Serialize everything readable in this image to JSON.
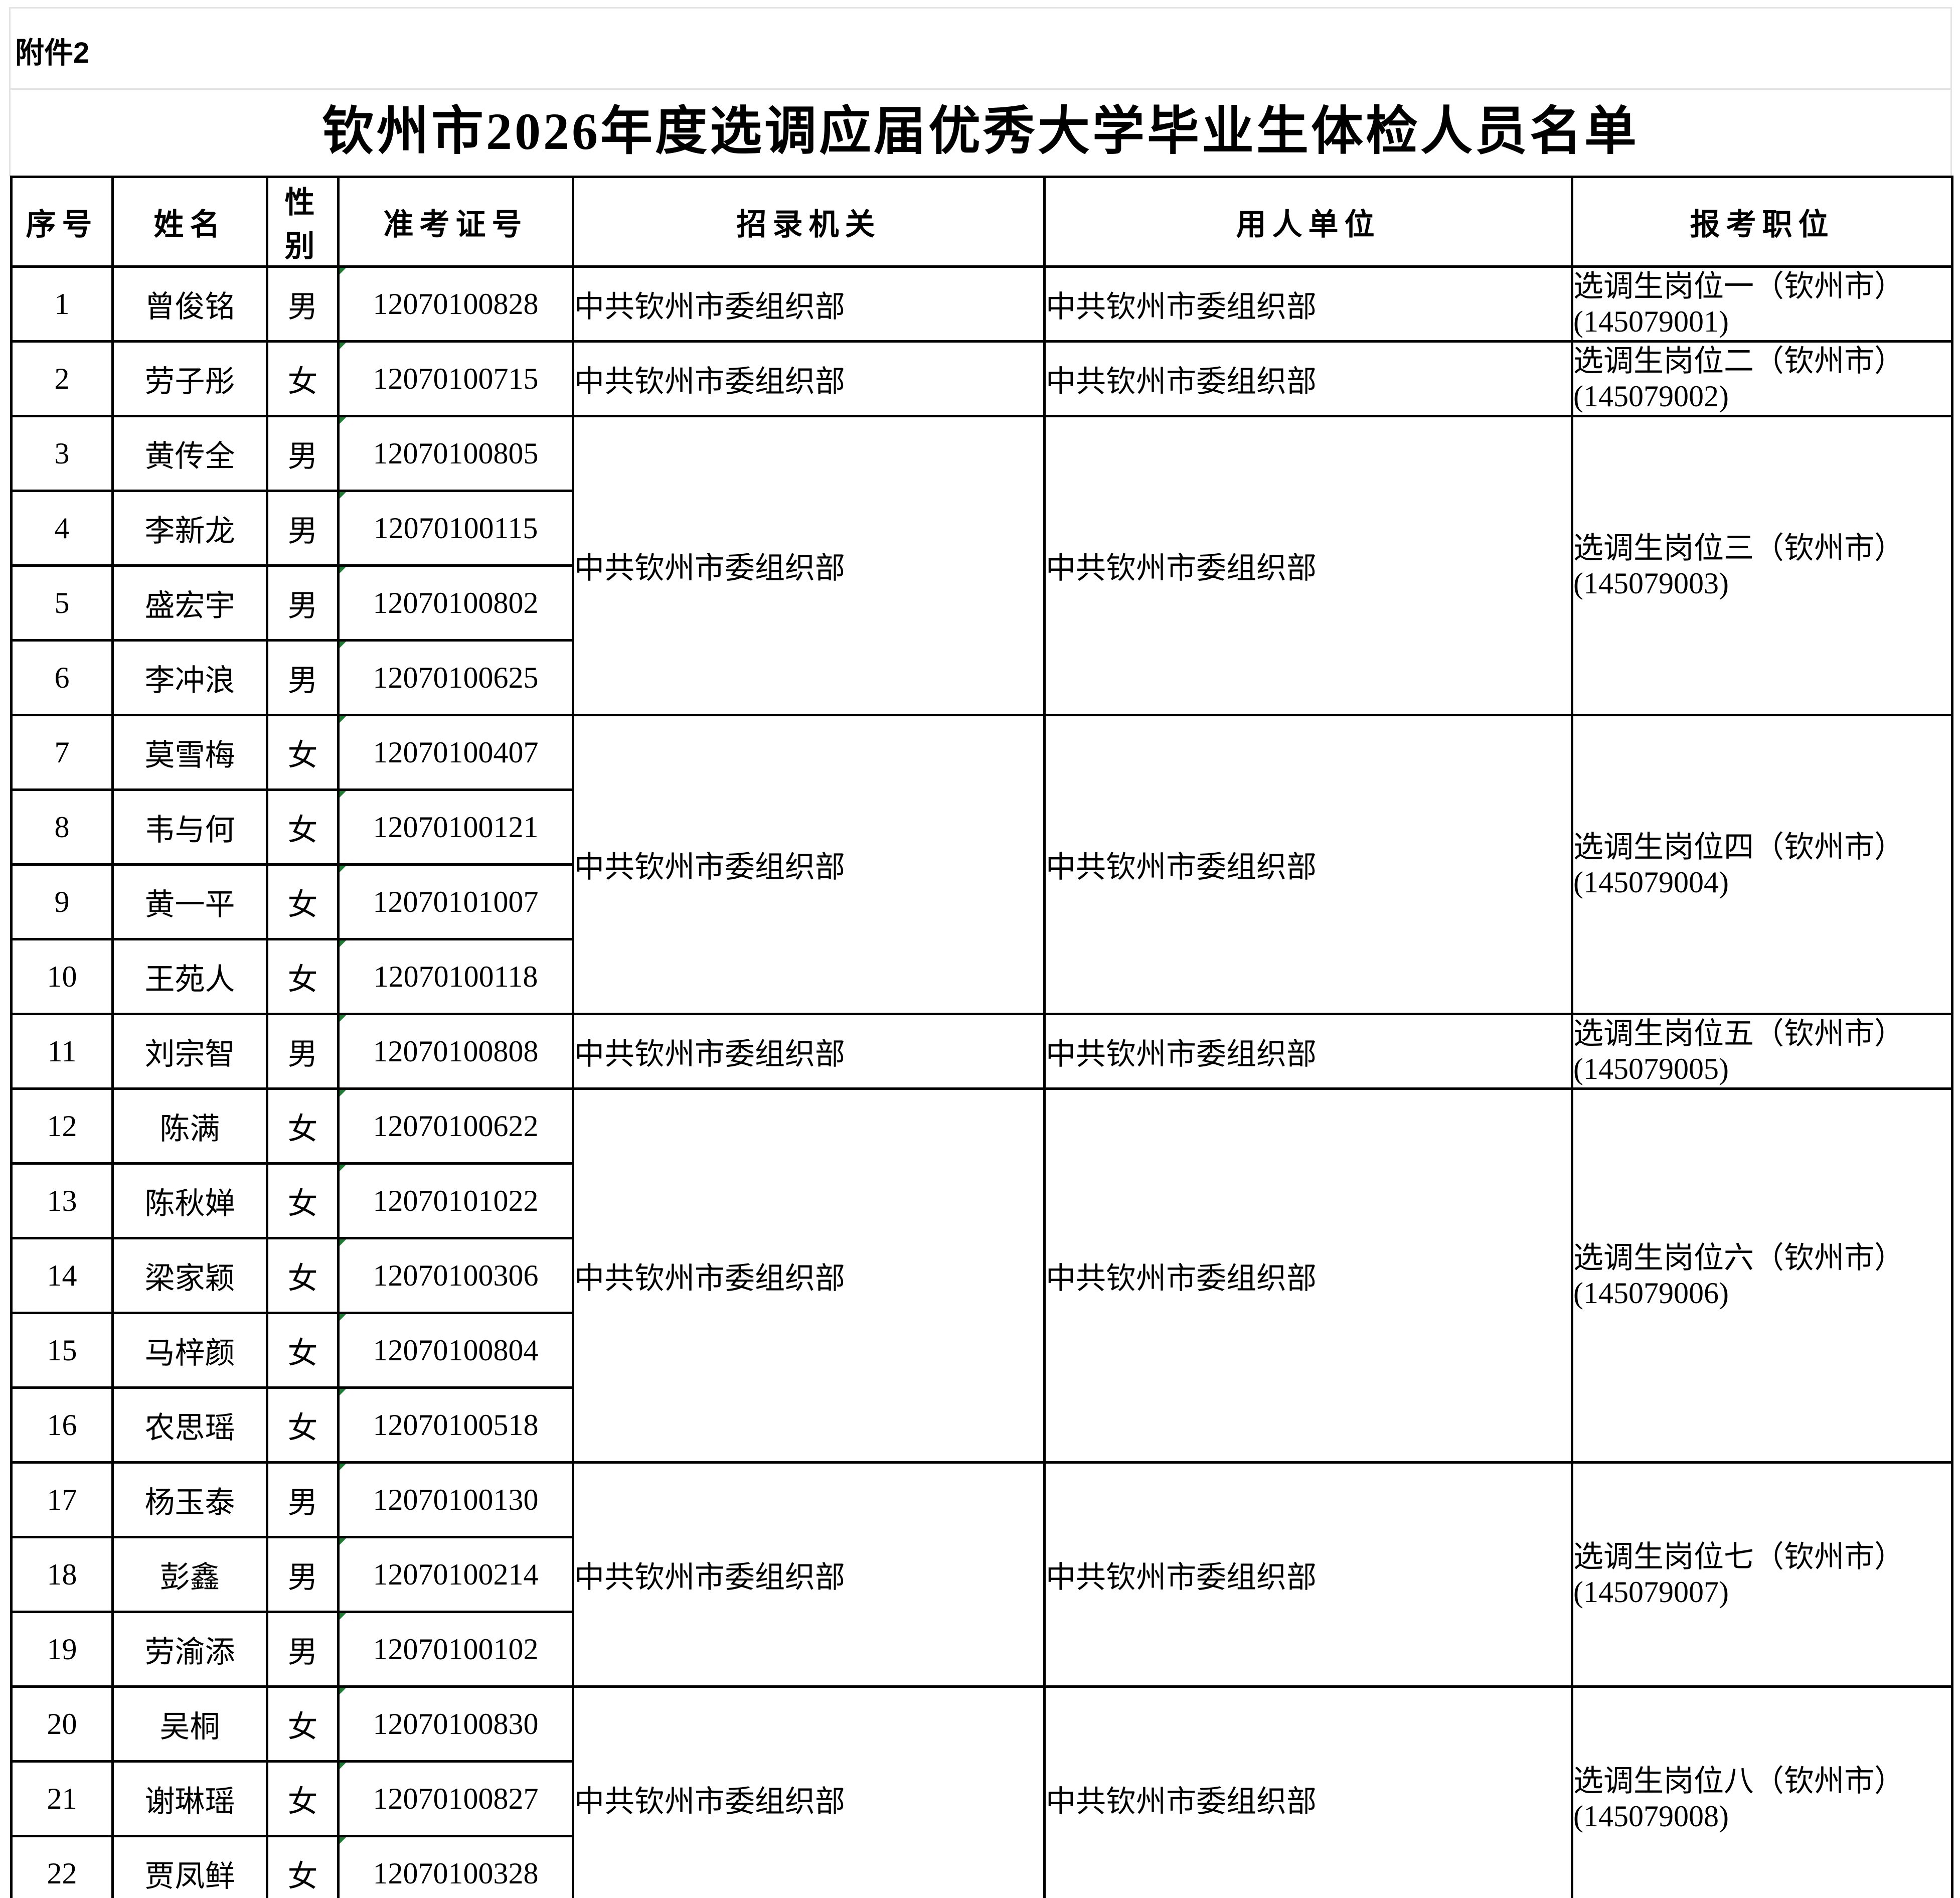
{
  "attachment_label": "附件2",
  "title": "钦州市2026年度选调应届优秀大学毕业生体检人员名单",
  "columns": [
    "序号",
    "姓名",
    "性别",
    "准考证号",
    "招录机关",
    "用人单位",
    "报考职位"
  ],
  "rows": [
    {
      "no": "1",
      "name": "曾俊铭",
      "gender": "男",
      "ticket": "12070100828"
    },
    {
      "no": "2",
      "name": "劳子彤",
      "gender": "女",
      "ticket": "12070100715"
    },
    {
      "no": "3",
      "name": "黄传全",
      "gender": "男",
      "ticket": "12070100805"
    },
    {
      "no": "4",
      "name": "李新龙",
      "gender": "男",
      "ticket": "12070100115"
    },
    {
      "no": "5",
      "name": "盛宏宇",
      "gender": "男",
      "ticket": "12070100802"
    },
    {
      "no": "6",
      "name": "李冲浪",
      "gender": "男",
      "ticket": "12070100625"
    },
    {
      "no": "7",
      "name": "莫雪梅",
      "gender": "女",
      "ticket": "12070100407"
    },
    {
      "no": "8",
      "name": "韦与何",
      "gender": "女",
      "ticket": "12070100121"
    },
    {
      "no": "9",
      "name": "黄一平",
      "gender": "女",
      "ticket": "12070101007"
    },
    {
      "no": "10",
      "name": "王苑人",
      "gender": "女",
      "ticket": "12070100118"
    },
    {
      "no": "11",
      "name": "刘宗智",
      "gender": "男",
      "ticket": "12070100808"
    },
    {
      "no": "12",
      "name": "陈满",
      "gender": "女",
      "ticket": "12070100622"
    },
    {
      "no": "13",
      "name": "陈秋婵",
      "gender": "女",
      "ticket": "12070101022"
    },
    {
      "no": "14",
      "name": "梁家颖",
      "gender": "女",
      "ticket": "12070100306"
    },
    {
      "no": "15",
      "name": "马梓颜",
      "gender": "女",
      "ticket": "12070100804"
    },
    {
      "no": "16",
      "name": "农思瑶",
      "gender": "女",
      "ticket": "12070100518"
    },
    {
      "no": "17",
      "name": "杨玉泰",
      "gender": "男",
      "ticket": "12070100130"
    },
    {
      "no": "18",
      "name": "彭鑫",
      "gender": "男",
      "ticket": "12070100214"
    },
    {
      "no": "19",
      "name": "劳渝添",
      "gender": "男",
      "ticket": "12070100102"
    },
    {
      "no": "20",
      "name": "吴桐",
      "gender": "女",
      "ticket": "12070100830"
    },
    {
      "no": "21",
      "name": "谢琳瑶",
      "gender": "女",
      "ticket": "12070100827"
    },
    {
      "no": "22",
      "name": "贾凤鲜",
      "gender": "女",
      "ticket": "12070100328"
    }
  ],
  "groups": [
    {
      "start": 0,
      "span": 1,
      "agency": "中共钦州市委组织部",
      "employer": "中共钦州市委组织部",
      "position_label": "选调生岗位一（钦州市）",
      "position_code": "(145079001)"
    },
    {
      "start": 1,
      "span": 1,
      "agency": "中共钦州市委组织部",
      "employer": "中共钦州市委组织部",
      "position_label": "选调生岗位二（钦州市）",
      "position_code": "(145079002)"
    },
    {
      "start": 2,
      "span": 4,
      "agency": "中共钦州市委组织部",
      "employer": "中共钦州市委组织部",
      "position_label": "选调生岗位三（钦州市）",
      "position_code": "(145079003)"
    },
    {
      "start": 6,
      "span": 4,
      "agency": "中共钦州市委组织部",
      "employer": "中共钦州市委组织部",
      "position_label": "选调生岗位四（钦州市）",
      "position_code": "(145079004)"
    },
    {
      "start": 10,
      "span": 1,
      "agency": "中共钦州市委组织部",
      "employer": "中共钦州市委组织部",
      "position_label": "选调生岗位五（钦州市）",
      "position_code": "(145079005)"
    },
    {
      "start": 11,
      "span": 5,
      "agency": "中共钦州市委组织部",
      "employer": "中共钦州市委组织部",
      "position_label": "选调生岗位六（钦州市）",
      "position_code": "(145079006)"
    },
    {
      "start": 16,
      "span": 3,
      "agency": "中共钦州市委组织部",
      "employer": "中共钦州市委组织部",
      "position_label": "选调生岗位七（钦州市）",
      "position_code": "(145079007)"
    },
    {
      "start": 19,
      "span": 3,
      "agency": "中共钦州市委组织部",
      "employer": "中共钦州市委组织部",
      "position_label": "选调生岗位八（钦州市）",
      "position_code": "(145079008)"
    }
  ],
  "colors": {
    "background": "#ffffff",
    "text": "#000000",
    "table_border": "#000000",
    "sheet_gridline": "#e3e3e3",
    "flag_triangle_green": "#1e7e34"
  }
}
